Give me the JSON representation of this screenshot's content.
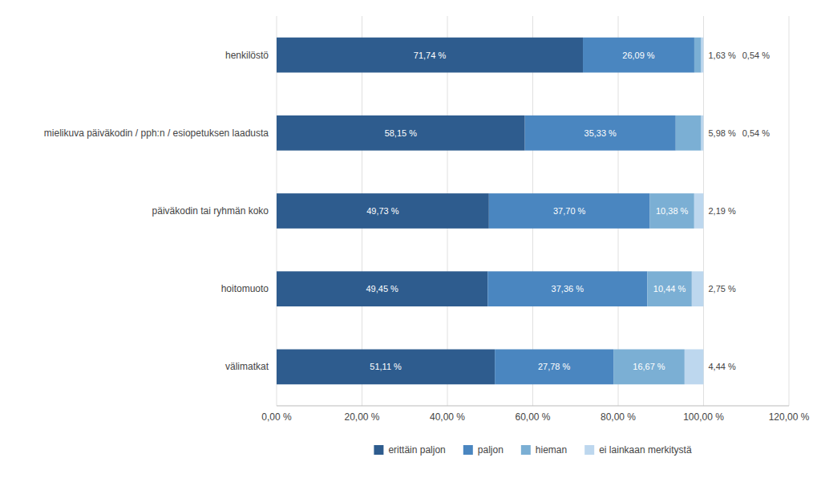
{
  "chart_data": {
    "type": "bar",
    "orientation": "horizontal",
    "stacked": true,
    "categories": [
      "välimatkat",
      "hoitomuoto",
      "päiväkodin tai ryhmän koko",
      "mielikuva päiväkodin / pph:n / esiopetuksen laadusta",
      "henkilöstö"
    ],
    "series": [
      {
        "name": "erittäin paljon",
        "color": "#2E5C8E",
        "values": [
          51.11,
          49.45,
          49.73,
          58.15,
          71.74
        ],
        "value_labels": [
          "51,11 %",
          "49,45 %",
          "49,73 %",
          "58,15 %",
          "71,74 %"
        ]
      },
      {
        "name": "paljon",
        "color": "#4A86C0",
        "values": [
          27.78,
          37.36,
          37.7,
          35.33,
          26.09
        ],
        "value_labels": [
          "27,78 %",
          "37,36 %",
          "37,70 %",
          "35,33 %",
          "26,09 %"
        ]
      },
      {
        "name": "hieman",
        "color": "#7BAFD4",
        "values": [
          16.67,
          10.44,
          10.38,
          5.98,
          1.63
        ],
        "value_labels": [
          "16,67 %",
          "10,44 %",
          "10,38 %",
          "5,98 %",
          "1,63 %"
        ]
      },
      {
        "name": "ei lainkaan merkitystä",
        "color": "#BDD7EE",
        "values": [
          4.44,
          2.75,
          2.19,
          0.54,
          0.54
        ],
        "value_labels": [
          "4,44 %",
          "2,75 %",
          "2,19 %",
          "0,54 %",
          "0,54 %"
        ]
      }
    ],
    "xlim": [
      0,
      120
    ],
    "xticks": [
      {
        "value": 0,
        "label": "0,00 %"
      },
      {
        "value": 20,
        "label": "20,00 %"
      },
      {
        "value": 40,
        "label": "40,00 %"
      },
      {
        "value": 60,
        "label": "60,00 %"
      },
      {
        "value": 80,
        "label": "80,00 %"
      },
      {
        "value": 100,
        "label": "100,00 %"
      },
      {
        "value": 120,
        "label": "120,00 %"
      }
    ],
    "grid": true,
    "legend": "bottom",
    "data_labels": true
  }
}
